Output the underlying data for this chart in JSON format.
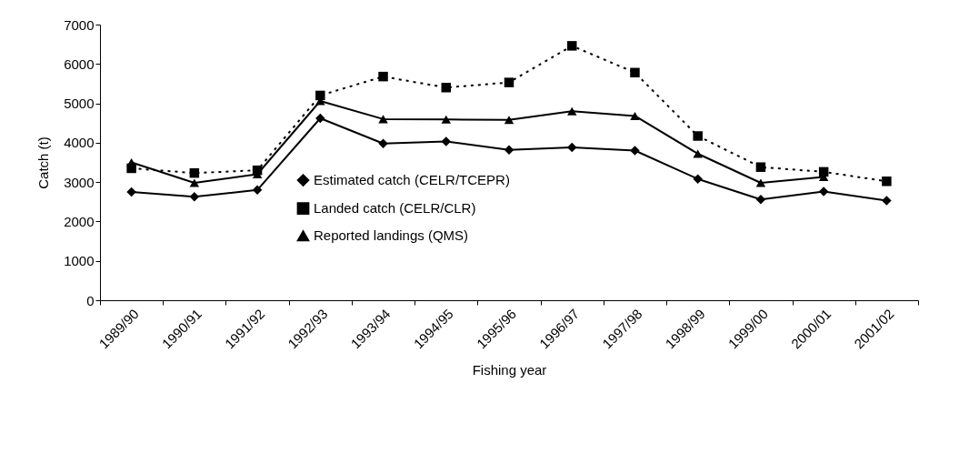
{
  "chart_data": {
    "type": "line",
    "xlabel": "Fishing year",
    "ylabel": "Catch (t)",
    "categories": [
      "1989/90",
      "1990/91",
      "1991/92",
      "1992/93",
      "1993/94",
      "1994/95",
      "1995/96",
      "1996/97",
      "1997/98",
      "1998/99",
      "1999/00",
      "2000/01",
      "2001/02"
    ],
    "series": [
      {
        "name": "Estimated catch (CELR/TCEPR)",
        "color": "#000000",
        "marker": "diamond",
        "line_style": "solid",
        "values": [
          2750,
          2630,
          2800,
          4620,
          3980,
          4030,
          3820,
          3880,
          3800,
          3080,
          2560,
          2760,
          2530
        ]
      },
      {
        "name": "Landed catch (CELR/CLR)",
        "color": "#000000",
        "marker": "square",
        "line_style": "dotted",
        "values": [
          3350,
          3230,
          3300,
          5200,
          5680,
          5400,
          5530,
          6460,
          5780,
          4170,
          3380,
          3260,
          3020
        ]
      },
      {
        "name": "Reported landings (QMS)",
        "color": "#000000",
        "marker": "triangle",
        "line_style": "solid",
        "values": [
          3500,
          2980,
          3200,
          5060,
          4600,
          4590,
          4580,
          4800,
          4680,
          3720,
          2980,
          3130,
          null
        ]
      }
    ],
    "ylim": [
      0,
      7000
    ],
    "yticks": [
      0,
      1000,
      2000,
      3000,
      4000,
      5000,
      6000,
      7000
    ],
    "grid": false,
    "legend": "bottom"
  }
}
